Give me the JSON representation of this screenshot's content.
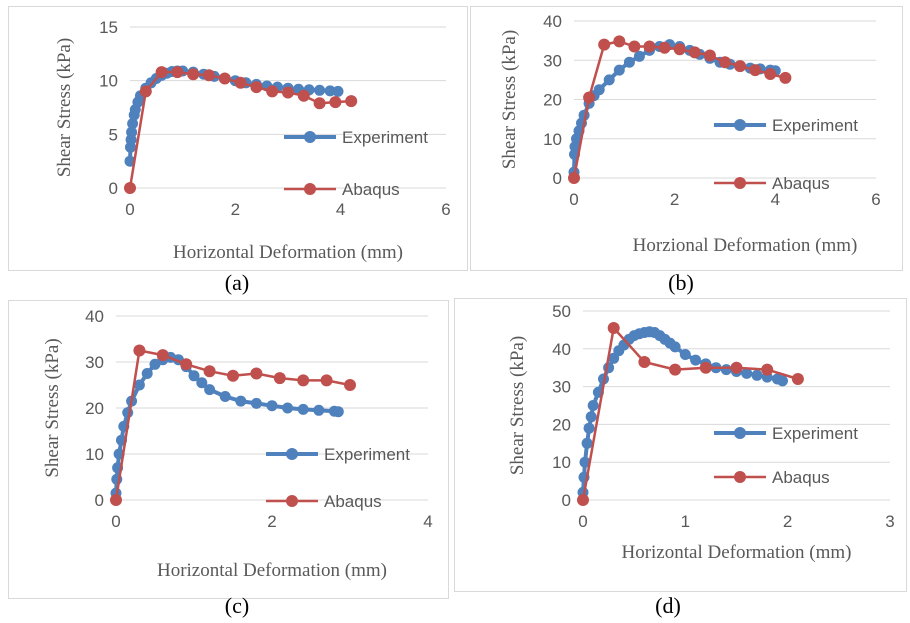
{
  "colors": {
    "experiment": "#4f81bd",
    "abaqus": "#c0504d",
    "grid": "#d9d9d9",
    "text": "#595959"
  },
  "chart_data": [
    {
      "type": "line",
      "caption": "(a)",
      "xlabel": "Horizontal Deformation (mm)",
      "ylabel": "Shear Stress (kPa)",
      "xlim": [
        0,
        6
      ],
      "ylim": [
        0,
        15
      ],
      "xticks": [
        0,
        2,
        4,
        6
      ],
      "yticks": [
        0,
        5,
        10,
        15
      ],
      "grid": true,
      "legend": "right",
      "series": [
        {
          "name": "Experiment",
          "x": [
            0.0,
            0.01,
            0.02,
            0.03,
            0.05,
            0.08,
            0.1,
            0.15,
            0.2,
            0.3,
            0.4,
            0.5,
            0.6,
            0.7,
            0.8,
            0.9,
            1.0,
            1.2,
            1.4,
            1.6,
            1.8,
            2.0,
            2.2,
            2.4,
            2.6,
            2.8,
            3.0,
            3.2,
            3.4,
            3.6,
            3.8,
            3.95
          ],
          "y": [
            2.5,
            3.8,
            4.5,
            5.2,
            6.0,
            6.8,
            7.3,
            8.0,
            8.6,
            9.3,
            9.8,
            10.2,
            10.5,
            10.7,
            10.85,
            10.9,
            10.9,
            10.8,
            10.6,
            10.4,
            10.2,
            10.0,
            9.8,
            9.65,
            9.5,
            9.4,
            9.3,
            9.2,
            9.15,
            9.1,
            9.05,
            9.0
          ]
        },
        {
          "name": "Abaqus",
          "x": [
            0.0,
            0.3,
            0.6,
            0.9,
            1.2,
            1.5,
            1.8,
            2.1,
            2.4,
            2.7,
            3.0,
            3.3,
            3.6,
            3.9,
            4.2
          ],
          "y": [
            0.0,
            9.0,
            10.8,
            10.8,
            10.6,
            10.5,
            10.2,
            9.8,
            9.4,
            9.0,
            8.9,
            8.6,
            7.9,
            8.0,
            8.1
          ]
        }
      ]
    },
    {
      "type": "line",
      "caption": "(b)",
      "xlabel": "Horzional Deformation (mm)",
      "ylabel": "Shear Stress (kPa)",
      "xlim": [
        0,
        6
      ],
      "ylim": [
        0,
        40
      ],
      "xticks": [
        0,
        2,
        4,
        6
      ],
      "yticks": [
        0,
        10,
        20,
        30,
        40
      ],
      "grid": true,
      "legend": "right",
      "series": [
        {
          "name": "Experiment",
          "x": [
            0.0,
            0.01,
            0.02,
            0.05,
            0.1,
            0.15,
            0.2,
            0.3,
            0.4,
            0.5,
            0.7,
            0.9,
            1.1,
            1.3,
            1.5,
            1.7,
            1.9,
            2.1,
            2.3,
            2.5,
            2.7,
            2.9,
            3.1,
            3.3,
            3.5,
            3.7,
            3.9,
            4.0
          ],
          "y": [
            1.5,
            6.0,
            8.0,
            10.0,
            12.0,
            14.0,
            16.0,
            19.0,
            21.0,
            22.5,
            25.0,
            27.5,
            29.5,
            31.0,
            32.5,
            33.5,
            34.0,
            33.5,
            32.5,
            31.5,
            30.5,
            29.5,
            29.0,
            28.5,
            28.0,
            27.8,
            27.5,
            27.3
          ]
        },
        {
          "name": "Abaqus",
          "x": [
            0.0,
            0.3,
            0.6,
            0.9,
            1.2,
            1.5,
            1.8,
            2.1,
            2.4,
            2.7,
            3.0,
            3.3,
            3.6,
            3.9,
            4.2
          ],
          "y": [
            0.0,
            20.5,
            34.0,
            34.8,
            33.5,
            33.5,
            33.2,
            32.8,
            32.0,
            31.2,
            29.5,
            28.5,
            27.5,
            26.5,
            25.5
          ]
        }
      ]
    },
    {
      "type": "line",
      "caption": "(c)",
      "xlabel": "Horizontal Deformation (mm)",
      "ylabel": "Shear Stress (kPa)",
      "xlim": [
        0,
        4
      ],
      "ylim": [
        0,
        40
      ],
      "xticks": [
        0,
        2,
        4
      ],
      "yticks": [
        0,
        10,
        20,
        30,
        40
      ],
      "grid": true,
      "legend": "right",
      "series": [
        {
          "name": "Experiment",
          "x": [
            0.0,
            0.01,
            0.02,
            0.04,
            0.07,
            0.1,
            0.15,
            0.2,
            0.3,
            0.4,
            0.5,
            0.6,
            0.7,
            0.8,
            0.9,
            1.0,
            1.1,
            1.2,
            1.4,
            1.6,
            1.8,
            2.0,
            2.2,
            2.4,
            2.6,
            2.8,
            2.85
          ],
          "y": [
            1.5,
            4.5,
            7.0,
            10.0,
            13.0,
            16.0,
            19.0,
            21.5,
            25.0,
            27.5,
            29.5,
            30.5,
            31.0,
            30.5,
            29.0,
            27.0,
            25.5,
            24.0,
            22.5,
            21.5,
            21.0,
            20.5,
            20.0,
            19.7,
            19.5,
            19.3,
            19.2
          ]
        },
        {
          "name": "Abaqus",
          "x": [
            0.0,
            0.3,
            0.6,
            0.9,
            1.2,
            1.5,
            1.8,
            2.1,
            2.4,
            2.7,
            3.0
          ],
          "y": [
            0.0,
            32.5,
            31.5,
            29.5,
            28.0,
            27.0,
            27.5,
            26.5,
            26.0,
            26.0,
            25.0
          ]
        }
      ]
    },
    {
      "type": "line",
      "caption": "(d)",
      "xlabel": "Horizontal Deformation (mm)",
      "ylabel": "Shear Stress (kPa)",
      "xlim": [
        0,
        3
      ],
      "ylim": [
        0,
        50
      ],
      "xticks": [
        0,
        1,
        2,
        3
      ],
      "yticks": [
        0,
        10,
        20,
        30,
        40,
        50
      ],
      "grid": true,
      "legend": "right",
      "series": [
        {
          "name": "Experiment",
          "x": [
            0.0,
            0.01,
            0.02,
            0.04,
            0.06,
            0.08,
            0.1,
            0.15,
            0.2,
            0.25,
            0.3,
            0.35,
            0.4,
            0.45,
            0.5,
            0.55,
            0.6,
            0.65,
            0.7,
            0.75,
            0.8,
            0.85,
            0.9,
            1.0,
            1.1,
            1.2,
            1.3,
            1.4,
            1.5,
            1.6,
            1.7,
            1.8,
            1.9,
            1.95
          ],
          "y": [
            2.0,
            6.0,
            10.0,
            15.0,
            19.0,
            22.0,
            25.0,
            28.5,
            32.0,
            35.0,
            37.5,
            39.5,
            41.0,
            42.5,
            43.5,
            44.0,
            44.3,
            44.5,
            44.3,
            43.5,
            42.5,
            41.5,
            40.5,
            38.5,
            37.0,
            36.0,
            35.0,
            34.5,
            34.0,
            33.5,
            33.0,
            32.5,
            32.0,
            31.5
          ]
        },
        {
          "name": "Abaqus",
          "x": [
            0.0,
            0.3,
            0.6,
            0.9,
            1.2,
            1.5,
            1.8,
            2.1
          ],
          "y": [
            0.0,
            45.5,
            36.5,
            34.5,
            35.0,
            35.0,
            34.5,
            32.0
          ]
        }
      ]
    }
  ]
}
